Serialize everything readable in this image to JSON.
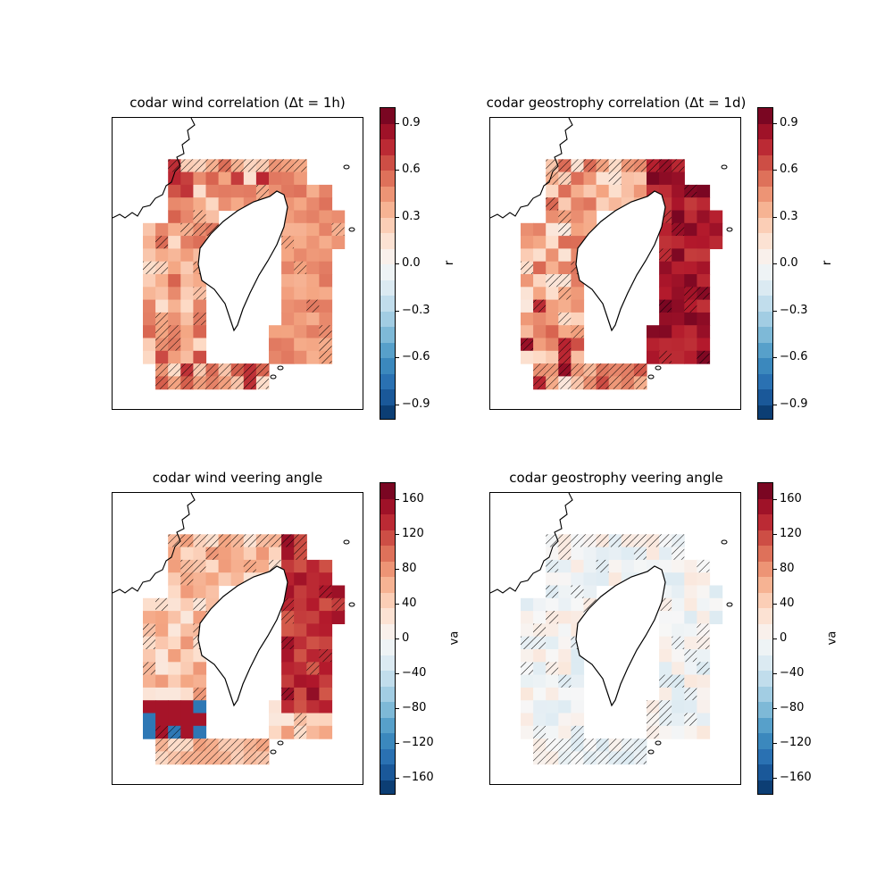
{
  "panels": [
    {
      "id": "p1",
      "title": "codar wind correlation (Δt = 1h)",
      "colorbar": {
        "label": "r",
        "min": -1,
        "max": 1,
        "ticks": [
          "0.9",
          "0.6",
          "0.3",
          "0.0",
          "−0.3",
          "−0.6",
          "−0.9"
        ],
        "tick_values": [
          0.9,
          0.6,
          0.3,
          0.0,
          -0.3,
          -0.6,
          -0.9
        ]
      },
      "field": "wind_corr"
    },
    {
      "id": "p2",
      "title": "codar geostrophy correlation (Δt = 1d)",
      "colorbar": {
        "label": "r",
        "min": -1,
        "max": 1,
        "ticks": [
          "0.9",
          "0.6",
          "0.3",
          "0.0",
          "−0.3",
          "−0.6",
          "−0.9"
        ],
        "tick_values": [
          0.9,
          0.6,
          0.3,
          0.0,
          -0.3,
          -0.6,
          -0.9
        ]
      },
      "field": "geo_corr"
    },
    {
      "id": "p3",
      "title": "codar wind veering angle",
      "colorbar": {
        "label": "va",
        "min": -180,
        "max": 180,
        "ticks": [
          "160",
          "120",
          "80",
          "40",
          "0",
          "−40",
          "−80",
          "−120",
          "−160"
        ],
        "tick_values": [
          160,
          120,
          80,
          40,
          0,
          -40,
          -80,
          -120,
          -160
        ]
      },
      "field": "wind_va"
    },
    {
      "id": "p4",
      "title": "codar geostrophy veering angle",
      "colorbar": {
        "label": "va",
        "min": -180,
        "max": 180,
        "ticks": [
          "160",
          "120",
          "80",
          "40",
          "0",
          "−40",
          "−80",
          "−120",
          "−160"
        ],
        "tick_values": [
          160,
          120,
          80,
          40,
          0,
          -40,
          -80,
          -120,
          -160
        ]
      },
      "field": "geo_va"
    }
  ],
  "colormap": "RdBu_r",
  "colors": {
    "ramp": [
      "#053061",
      "#2166ac",
      "#4393c3",
      "#92c5de",
      "#d1e5f0",
      "#f7f7f7",
      "#fddbc7",
      "#f4a582",
      "#d6604d",
      "#b2182b",
      "#67001f"
    ]
  }
}
